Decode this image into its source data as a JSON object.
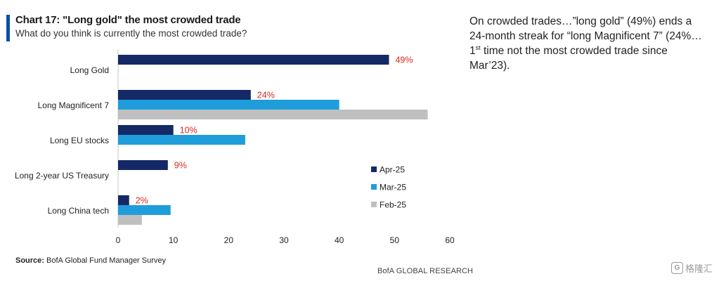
{
  "header": {
    "title": "Chart 17: \"Long gold\" the most crowded trade",
    "subtitle": "What do you think is currently the most crowded trade?",
    "accent_color": "#0b4fa8"
  },
  "chart_data": {
    "type": "bar",
    "orientation": "horizontal",
    "categories": [
      "Long Gold",
      "Long Magnificent 7",
      "Long EU stocks",
      "Long 2-year US Treasury",
      "Long China tech"
    ],
    "series": [
      {
        "name": "Apr-25",
        "color": "#142966",
        "values": [
          49,
          24,
          10,
          9,
          2
        ]
      },
      {
        "name": "Mar-25",
        "color": "#1f9ddb",
        "values": [
          null,
          40,
          23,
          0,
          9.5
        ]
      },
      {
        "name": "Feb-25",
        "color": "#bfbfbf",
        "values": [
          null,
          56,
          null,
          null,
          4.3
        ]
      }
    ],
    "data_labels": [
      "49%",
      "24%",
      "10%",
      "9%",
      "2%"
    ],
    "data_label_color": "#e0261b",
    "x_ticks": [
      "0",
      "10",
      "20",
      "30",
      "40",
      "50",
      "60"
    ],
    "xlim": [
      0,
      60
    ],
    "grid": false,
    "legend_position": "bottom-right"
  },
  "footer": {
    "source_label": "Source:",
    "source_text": "BofA Global Fund Manager Survey",
    "brand": "BofA GLOBAL RESEARCH"
  },
  "commentary": {
    "text_part1": "On crowded trades…”long gold” (49%) ends a 24-month streak for “long Magnificent 7” (24%…1",
    "superscript": "st",
    "text_part2": " time not the most crowded trade since Mar’23)."
  },
  "watermark": {
    "icon": "G",
    "text": "格隆汇"
  }
}
